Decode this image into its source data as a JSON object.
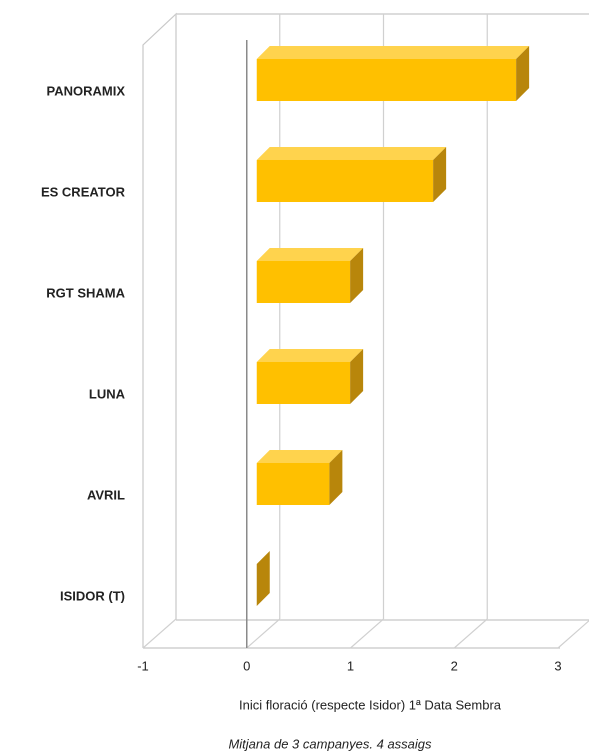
{
  "chart_data": {
    "type": "bar3d_horizontal",
    "categories": [
      "PANORAMIX",
      "ES CREATOR",
      "RGT SHAMA",
      "LUNA",
      "AVRIL",
      "ISIDOR (T)"
    ],
    "values": [
      2.5,
      1.7,
      0.9,
      0.9,
      0.7,
      0
    ],
    "color": "#ffc000",
    "xlim": [
      -1,
      3
    ],
    "xticks": [
      -1,
      0,
      1,
      2,
      3
    ],
    "grid": true,
    "x_label": "Inici floració (respecte Isidor) 1ª Data Sembra",
    "subtitle": "Mitjana de 3 campanyes. 4 assaigs"
  }
}
